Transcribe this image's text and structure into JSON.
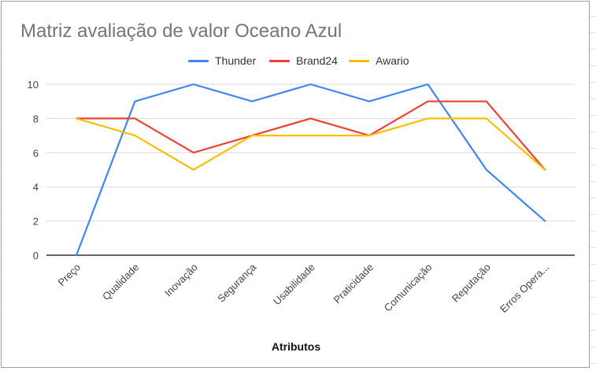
{
  "chart_data": {
    "type": "line",
    "title": "Matriz avaliação de valor Oceano Azul",
    "xlabel": "Atributos",
    "ylabel": "",
    "ylim": [
      0,
      10
    ],
    "yticks": [
      0,
      2,
      4,
      6,
      8,
      10
    ],
    "grid": true,
    "legend_position": "top",
    "categories": [
      "Preço",
      "Qualidade",
      "Inovação",
      "Segurança",
      "Usabilidade",
      "Praticidade",
      "Comunicação",
      "Reputação",
      "Erros Opera..."
    ],
    "series": [
      {
        "name": "Thunder",
        "color": "#4285F4",
        "values": [
          0,
          9,
          10,
          9,
          10,
          9,
          10,
          5,
          2
        ]
      },
      {
        "name": "Brand24",
        "color": "#EA4335",
        "values": [
          8,
          8,
          6,
          7,
          8,
          7,
          9,
          9,
          5
        ]
      },
      {
        "name": "Awario",
        "color": "#FBBC04",
        "values": [
          8,
          7,
          5,
          7,
          7,
          7,
          8,
          8,
          5
        ]
      }
    ]
  }
}
